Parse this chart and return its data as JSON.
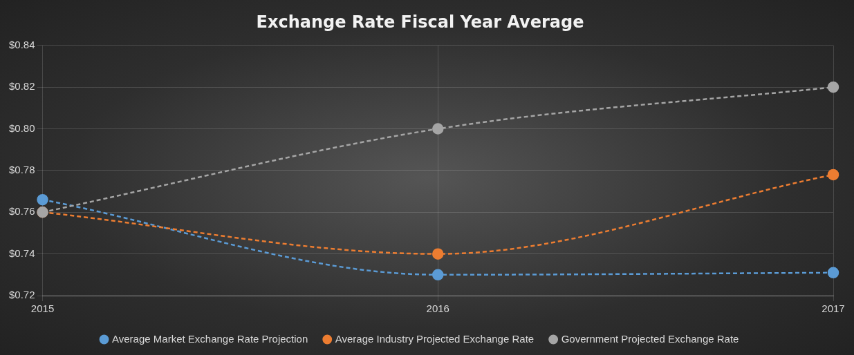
{
  "chart_data": {
    "type": "line",
    "title": "Exchange Rate Fiscal Year Average",
    "categories": [
      "2015",
      "2016",
      "2017"
    ],
    "series": [
      {
        "name": "Average Market Exchange Rate Projection",
        "color": "#5b9bd5",
        "values": [
          0.766,
          0.73,
          0.731
        ]
      },
      {
        "name": "Average Industry Projected Exchange Rate",
        "color": "#ed7d31",
        "values": [
          0.76,
          0.74,
          0.778
        ]
      },
      {
        "name": "Government Projected Exchange Rate",
        "color": "#a5a5a5",
        "values": [
          0.76,
          0.8,
          0.82
        ]
      }
    ],
    "ylim": [
      0.72,
      0.84
    ],
    "yticks": [
      {
        "value": 0.72,
        "label": "$0.72"
      },
      {
        "value": 0.74,
        "label": "$0.74"
      },
      {
        "value": 0.76,
        "label": "$0.76"
      },
      {
        "value": 0.78,
        "label": "$0.78"
      },
      {
        "value": 0.8,
        "label": "$0.80"
      },
      {
        "value": 0.82,
        "label": "$0.82"
      },
      {
        "value": 0.84,
        "label": "$0.84"
      }
    ],
    "grid": true,
    "legend": "bottom",
    "marker": "circle",
    "line_style": "dashed"
  }
}
